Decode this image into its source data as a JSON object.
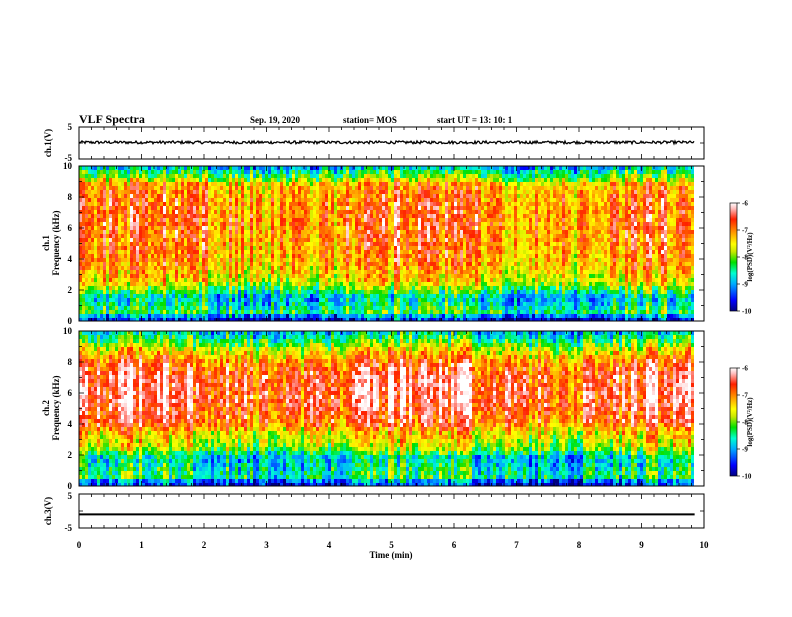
{
  "header": {
    "title": "VLF Spectra",
    "date": "Sep. 19, 2020",
    "station": "station= MOS",
    "start": "start  UT =   13: 10: 1"
  },
  "colors": {
    "spectrum": [
      "#000080",
      "#0000ff",
      "#00aaff",
      "#00ffd0",
      "#00e000",
      "#c8e800",
      "#ffff00",
      "#ffa000",
      "#ff2000",
      "#ffffff"
    ]
  },
  "chart_data": [
    {
      "type": "line",
      "ylabel": "ch.1(V)",
      "xlim": [
        0,
        10
      ],
      "ylim": [
        -5,
        5
      ],
      "yticks": [
        "5",
        "-5"
      ],
      "series": [
        {
          "x": [
            0,
            9.85
          ],
          "y": [
            0.2,
            0.2
          ]
        }
      ]
    },
    {
      "type": "heatmap",
      "ylabel_line1": "ch.1",
      "ylabel_line2": "Frequency (kHz)",
      "xlim": [
        0,
        10
      ],
      "ylim": [
        0,
        10
      ],
      "data_end_min": 9.85,
      "yticks": [
        "0",
        "2",
        "4",
        "6",
        "8",
        "10"
      ],
      "profile": [
        {
          "f": 0.2,
          "v": -9.6
        },
        {
          "f": 0.5,
          "v": -8.3
        },
        {
          "f": 1.0,
          "v": -8.6
        },
        {
          "f": 1.5,
          "v": -8.9
        },
        {
          "f": 2.0,
          "v": -8.2
        },
        {
          "f": 2.5,
          "v": -7.6
        },
        {
          "f": 3.5,
          "v": -7.2
        },
        {
          "f": 5.0,
          "v": -7.0
        },
        {
          "f": 6.5,
          "v": -6.9
        },
        {
          "f": 8.0,
          "v": -7.0
        },
        {
          "f": 8.8,
          "v": -7.2
        },
        {
          "f": 9.2,
          "v": -8.0
        },
        {
          "f": 9.7,
          "v": -8.5
        },
        {
          "f": 10.0,
          "v": -9.2
        }
      ],
      "colorbar": {
        "label": "log(PSD)(V²/Hz)",
        "ticks": [
          "-6",
          "-7",
          "-8",
          "-9",
          "-10"
        ],
        "range": [
          -10,
          -6
        ]
      }
    },
    {
      "type": "heatmap",
      "ylabel_line1": "ch.2",
      "ylabel_line2": "Frequency (kHz)",
      "xlim": [
        0,
        10
      ],
      "ylim": [
        0,
        10
      ],
      "data_end_min": 9.85,
      "yticks": [
        "0",
        "2",
        "4",
        "6",
        "8",
        "10"
      ],
      "profile": [
        {
          "f": 0.2,
          "v": -9.5
        },
        {
          "f": 0.6,
          "v": -8.4
        },
        {
          "f": 1.2,
          "v": -8.6
        },
        {
          "f": 1.8,
          "v": -8.8
        },
        {
          "f": 2.5,
          "v": -7.8
        },
        {
          "f": 3.5,
          "v": -7.4
        },
        {
          "f": 4.0,
          "v": -6.8
        },
        {
          "f": 5.5,
          "v": -6.5
        },
        {
          "f": 7.0,
          "v": -6.5
        },
        {
          "f": 8.0,
          "v": -6.9
        },
        {
          "f": 8.8,
          "v": -7.6
        },
        {
          "f": 9.4,
          "v": -8.3
        },
        {
          "f": 10.0,
          "v": -8.9
        }
      ],
      "colorbar": {
        "label": "log(PSD)(V²/Hz)",
        "ticks": [
          "-6",
          "-7",
          "-8",
          "-9",
          "-10"
        ],
        "range": [
          -10,
          -6
        ]
      }
    },
    {
      "type": "line",
      "ylabel": "ch.3(V)",
      "xlim": [
        0,
        10
      ],
      "ylim": [
        -5,
        5
      ],
      "yticks": [
        "5",
        "-5"
      ],
      "xlabel": "Time (min)",
      "xticks": [
        "0",
        "1",
        "2",
        "3",
        "4",
        "5",
        "6",
        "7",
        "8",
        "9",
        "10"
      ],
      "series": [
        {
          "x": [
            0,
            9.85
          ],
          "y": [
            -1.0,
            -1.0
          ]
        }
      ]
    }
  ]
}
